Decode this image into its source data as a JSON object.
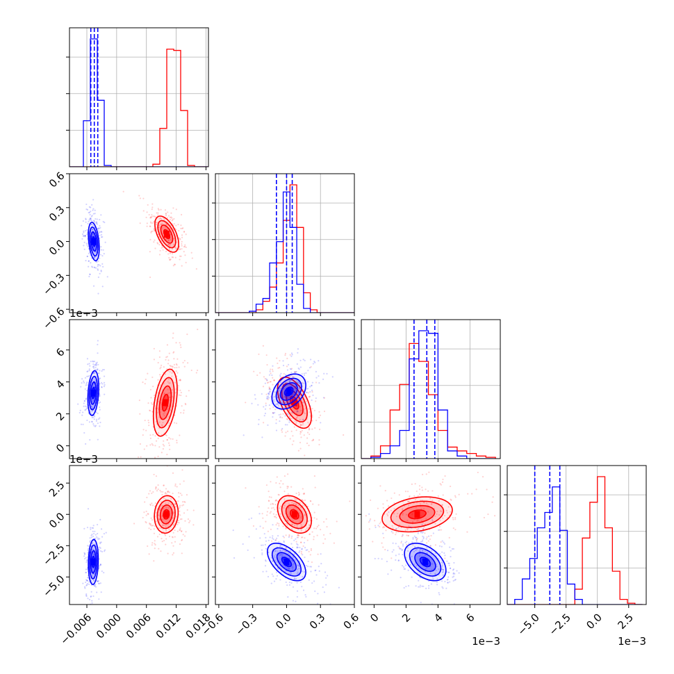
{
  "chart_data": {
    "type": "corner",
    "colors": {
      "blue": "#0000ff",
      "red": "#ff0000",
      "grid": "#b0b0b0"
    },
    "parameters": [
      {
        "range": [
          -0.0095,
          0.0185
        ],
        "ticks": [
          -0.006,
          0.0,
          0.006,
          0.012,
          0.018
        ],
        "tick_labels": [
          "−0.006",
          "0.000",
          "0.006",
          "0.012",
          "0.018"
        ],
        "offset_text": ""
      },
      {
        "range": [
          -0.63,
          0.6
        ],
        "ticks": [
          -0.6,
          -0.3,
          0.0,
          0.3,
          0.6
        ],
        "tick_labels": [
          "−0.6",
          "−0.3",
          "0.0",
          "0.3",
          "0.6"
        ],
        "offset_text": ""
      },
      {
        "range": [
          -0.0008,
          0.0079
        ],
        "ticks": [
          0.0,
          0.002,
          0.004,
          0.006
        ],
        "tick_labels": [
          "0",
          "2",
          "4",
          "6"
        ],
        "offset_text": "1e−3"
      },
      {
        "range": [
          -0.0072,
          0.0039
        ],
        "ticks": [
          -0.005,
          -0.0025,
          0.0,
          0.0025
        ],
        "tick_labels": [
          "−5.0",
          "−2.5",
          "0.0",
          "2.5"
        ],
        "offset_text": "1e−3"
      }
    ],
    "series": [
      {
        "color": "blue",
        "mean": [
          -0.0045,
          0.0,
          0.0033,
          -0.0038
        ],
        "sd": [
          0.0006,
          0.085,
          0.0006,
          0.0008
        ],
        "quantiles_shown": true
      },
      {
        "color": "red",
        "mean": [
          0.0102,
          0.06,
          0.0026,
          0.0
        ],
        "sd": [
          0.0014,
          0.08,
          0.0011,
          0.0007
        ],
        "quantiles_shown": false
      }
    ],
    "histograms": [
      {
        "parameter": 0,
        "blue": {
          "edges": [
            -0.0095,
            -0.0081,
            -0.0067,
            -0.0053,
            -0.0039,
            -0.0025,
            -0.0011,
            0.0003,
            0.0017,
            0.0031,
            0.0045,
            0.0059,
            0.0073,
            0.0087,
            0.0101,
            0.0115,
            0.0129,
            0.0143,
            0.0157,
            0.0171,
            0.0185
          ],
          "counts": [
            0,
            0,
            36,
            100,
            52,
            1,
            0,
            0,
            0,
            0,
            0,
            0,
            0,
            0,
            0,
            0,
            0,
            0,
            0,
            0
          ],
          "quantiles": [
            -0.0052,
            -0.0045,
            -0.0038
          ]
        },
        "red": {
          "edges": [
            -0.0095,
            -0.0081,
            -0.0067,
            -0.0053,
            -0.0039,
            -0.0025,
            -0.0011,
            0.0003,
            0.0017,
            0.0031,
            0.0045,
            0.0059,
            0.0073,
            0.0087,
            0.0101,
            0.0115,
            0.0129,
            0.0143,
            0.0157,
            0.0171,
            0.0185
          ],
          "counts": [
            0,
            0,
            0,
            0,
            0,
            0,
            0,
            0,
            0,
            0,
            0,
            0,
            2,
            30,
            92,
            91,
            44,
            1,
            0,
            0
          ],
          "quantiles": []
        }
      },
      {
        "parameter": 1,
        "blue": {
          "edges": [
            -0.63,
            -0.57,
            -0.51,
            -0.45,
            -0.39,
            -0.33,
            -0.27,
            -0.21,
            -0.15,
            -0.09,
            -0.03,
            0.03,
            0.09,
            0.15,
            0.21,
            0.27,
            0.33,
            0.39,
            0.45,
            0.51,
            0.57,
            0.63
          ],
          "counts": [
            0,
            0,
            0,
            0,
            0,
            1,
            6,
            10,
            35,
            50,
            85,
            60,
            20,
            3,
            0,
            0,
            0,
            0,
            0,
            0,
            0
          ],
          "quantiles": [
            -0.09,
            0.0,
            0.05
          ]
        },
        "red": {
          "edges": [
            -0.63,
            -0.57,
            -0.51,
            -0.45,
            -0.39,
            -0.33,
            -0.27,
            -0.21,
            -0.15,
            -0.09,
            -0.03,
            0.03,
            0.09,
            0.15,
            0.21,
            0.27,
            0.33,
            0.39,
            0.45,
            0.51,
            0.57,
            0.63
          ],
          "counts": [
            0,
            0,
            0,
            0,
            0,
            0,
            2,
            8,
            18,
            35,
            65,
            90,
            60,
            14,
            2,
            0,
            0,
            0,
            0,
            0,
            0
          ],
          "quantiles": []
        }
      },
      {
        "parameter": 2,
        "blue": {
          "edges": [
            -0.0008,
            -0.0002,
            0.0004,
            0.001,
            0.0016,
            0.0022,
            0.0028,
            0.0034,
            0.004,
            0.0046,
            0.0052,
            0.0058,
            0.0064,
            0.007,
            0.0076
          ],
          "counts": [
            0,
            1,
            4,
            10,
            22,
            78,
            100,
            98,
            38,
            6,
            2,
            0,
            0,
            0
          ],
          "quantiles": [
            0.0025,
            0.0033,
            0.0038
          ]
        },
        "red": {
          "edges": [
            -0.0008,
            -0.0002,
            0.0004,
            0.001,
            0.0016,
            0.0022,
            0.0028,
            0.0034,
            0.004,
            0.0046,
            0.0052,
            0.0058,
            0.0064,
            0.007,
            0.0076
          ],
          "counts": [
            0,
            2,
            10,
            38,
            58,
            90,
            76,
            50,
            22,
            9,
            6,
            4,
            2,
            1
          ],
          "quantiles": []
        }
      },
      {
        "parameter": 3,
        "blue": {
          "edges": [
            -0.0072,
            -0.0066,
            -0.006,
            -0.0054,
            -0.0048,
            -0.0042,
            -0.0036,
            -0.003,
            -0.0024,
            -0.0018,
            -0.0012,
            -0.0006,
            0.0,
            0.0006,
            0.0012,
            0.0018,
            0.0024,
            0.003,
            0.0036
          ],
          "counts": [
            0,
            4,
            20,
            36,
            60,
            72,
            92,
            58,
            16,
            4,
            0,
            0,
            0,
            0,
            0,
            0,
            0,
            0
          ],
          "quantiles": [
            -0.005,
            -0.0038,
            -0.003
          ]
        },
        "red": {
          "edges": [
            -0.0072,
            -0.0066,
            -0.006,
            -0.0054,
            -0.0048,
            -0.0042,
            -0.0036,
            -0.003,
            -0.0024,
            -0.0018,
            -0.0012,
            -0.0006,
            0.0,
            0.0006,
            0.0012,
            0.0018,
            0.0024,
            0.003,
            0.0036
          ],
          "counts": [
            0,
            0,
            0,
            0,
            0,
            0,
            0,
            0,
            0,
            12,
            52,
            80,
            100,
            60,
            26,
            4,
            1,
            0
          ],
          "quantiles": []
        }
      }
    ],
    "contours": [
      {
        "x": 0,
        "y": 1,
        "blue": {
          "center": [
            -0.0046,
            0.0
          ],
          "sd": [
            0.00055,
            0.085
          ],
          "rho": -0.35
        },
        "red": {
          "center": [
            0.0101,
            0.065
          ],
          "sd": [
            0.0012,
            0.08
          ],
          "rho": -0.55
        }
      },
      {
        "x": 0,
        "y": 2,
        "blue": {
          "center": [
            -0.0047,
            0.0033
          ],
          "sd": [
            0.00055,
            0.0007
          ],
          "rho": 0.25
        },
        "red": {
          "center": [
            0.0098,
            0.0027
          ],
          "sd": [
            0.0012,
            0.00105
          ],
          "rho": 0.4
        }
      },
      {
        "x": 1,
        "y": 2,
        "blue": {
          "center": [
            0.02,
            0.0034
          ],
          "sd": [
            0.075,
            0.00055
          ],
          "rho": 0.35
        },
        "red": {
          "center": [
            0.07,
            0.0027
          ],
          "sd": [
            0.075,
            0.0008
          ],
          "rho": -0.55
        }
      },
      {
        "x": 0,
        "y": 3,
        "blue": {
          "center": [
            -0.0047,
            -0.0038
          ],
          "sd": [
            0.0005,
            0.0009
          ],
          "rho": 0.1
        },
        "red": {
          "center": [
            0.01,
            0.0
          ],
          "sd": [
            0.0012,
            0.00075
          ],
          "rho": 0.1
        }
      },
      {
        "x": 1,
        "y": 3,
        "blue": {
          "center": [
            0.0,
            -0.0038
          ],
          "sd": [
            0.085,
            0.00075
          ],
          "rho": -0.55
        },
        "red": {
          "center": [
            0.07,
            0.0
          ],
          "sd": [
            0.075,
            0.00075
          ],
          "rho": -0.35
        }
      },
      {
        "x": 2,
        "y": 3,
        "blue": {
          "center": [
            0.0032,
            -0.0038
          ],
          "sd": [
            0.00065,
            0.00075
          ],
          "rho": -0.45
        },
        "red": {
          "center": [
            0.0027,
            0.0
          ],
          "sd": [
            0.0011,
            0.0007
          ],
          "rho": 0.25
        }
      }
    ],
    "grid": true
  }
}
